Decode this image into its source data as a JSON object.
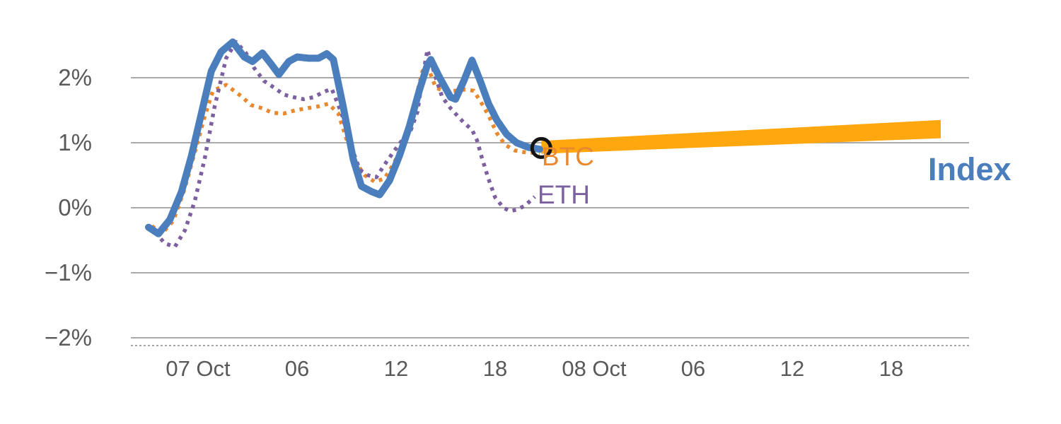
{
  "chart_data": {
    "type": "line",
    "title": "",
    "xlabel": "",
    "ylabel": "",
    "ylim": [
      -2,
      2
    ],
    "x_range_hours": [
      0,
      48
    ],
    "grid": true,
    "legend_position": "end-of-line-labels",
    "colors": {
      "grid": "#9e9e9e",
      "axis_text": "#595959",
      "dashed_axis": "#8a8a8a",
      "background": "#ffffff"
    },
    "y_ticks": [
      {
        "value": 2,
        "label": "2%"
      },
      {
        "value": 1,
        "label": "1%"
      },
      {
        "value": 0,
        "label": "0%"
      },
      {
        "value": -1,
        "label": "−1%"
      },
      {
        "value": -2,
        "label": "−2%"
      }
    ],
    "x_ticks": [
      {
        "h": 3,
        "label": "07 Oct"
      },
      {
        "h": 9,
        "label": "06"
      },
      {
        "h": 15,
        "label": "12"
      },
      {
        "h": 21,
        "label": "18"
      },
      {
        "h": 27,
        "label": "08 Oct"
      },
      {
        "h": 33,
        "label": "06"
      },
      {
        "h": 39,
        "label": "12"
      },
      {
        "h": 45,
        "label": "18"
      }
    ],
    "series": [
      {
        "name": "BTC",
        "color": "#e8882f",
        "style": "dotted",
        "width": 5.5,
        "points": [
          [
            0.2,
            -0.28
          ],
          [
            0.8,
            -0.4
          ],
          [
            1.5,
            -0.2
          ],
          [
            2.2,
            0.3
          ],
          [
            2.8,
            0.85
          ],
          [
            3.4,
            1.4
          ],
          [
            3.9,
            1.8
          ],
          [
            4.7,
            1.89
          ],
          [
            5.6,
            1.72
          ],
          [
            6.2,
            1.58
          ],
          [
            6.9,
            1.53
          ],
          [
            7.5,
            1.46
          ],
          [
            8.2,
            1.45
          ],
          [
            8.9,
            1.5
          ],
          [
            9.6,
            1.53
          ],
          [
            10.3,
            1.56
          ],
          [
            10.9,
            1.6
          ],
          [
            11.5,
            1.45
          ],
          [
            12,
            1.05
          ],
          [
            12.6,
            0.68
          ],
          [
            13.1,
            0.5
          ],
          [
            13.7,
            0.4
          ],
          [
            14.3,
            0.45
          ],
          [
            14.9,
            0.7
          ],
          [
            15.5,
            1.05
          ],
          [
            16.1,
            1.6
          ],
          [
            16.6,
            2.1
          ],
          [
            16.9,
            2.18
          ],
          [
            17.4,
            1.85
          ],
          [
            18,
            1.78
          ],
          [
            18.6,
            1.8
          ],
          [
            19.2,
            1.82
          ],
          [
            19.7,
            1.8
          ],
          [
            20.2,
            1.6
          ],
          [
            20.6,
            1.42
          ],
          [
            21.1,
            1.15
          ],
          [
            21.6,
            0.97
          ],
          [
            22.2,
            0.88
          ],
          [
            22.9,
            0.85
          ],
          [
            23.7,
            0.84
          ]
        ]
      },
      {
        "name": "ETH",
        "color": "#7d60a0",
        "style": "dotted",
        "width": 5.5,
        "points": [
          [
            0.4,
            -0.38
          ],
          [
            1,
            -0.55
          ],
          [
            1.6,
            -0.6
          ],
          [
            2.2,
            -0.35
          ],
          [
            2.8,
            0.1
          ],
          [
            3.4,
            0.75
          ],
          [
            4,
            1.55
          ],
          [
            4.7,
            2.3
          ],
          [
            5.3,
            2.55
          ],
          [
            5.9,
            2.38
          ],
          [
            6.4,
            2.15
          ],
          [
            7,
            1.95
          ],
          [
            7.6,
            1.85
          ],
          [
            8.2,
            1.74
          ],
          [
            8.8,
            1.7
          ],
          [
            9.4,
            1.67
          ],
          [
            10,
            1.7
          ],
          [
            10.6,
            1.78
          ],
          [
            11.1,
            1.83
          ],
          [
            11.7,
            1.45
          ],
          [
            12.2,
            1
          ],
          [
            12.8,
            0.58
          ],
          [
            13.3,
            0.5
          ],
          [
            13.8,
            0.47
          ],
          [
            14.4,
            0.7
          ],
          [
            14.9,
            0.88
          ],
          [
            15.4,
            1.05
          ],
          [
            15.9,
            1.2
          ],
          [
            16.3,
            1.48
          ],
          [
            16.6,
            2
          ],
          [
            16.9,
            2.43
          ],
          [
            17.4,
            2
          ],
          [
            17.8,
            1.7
          ],
          [
            18.3,
            1.53
          ],
          [
            18.7,
            1.42
          ],
          [
            19.1,
            1.31
          ],
          [
            19.6,
            1.2
          ],
          [
            19.9,
            1.04
          ],
          [
            20.2,
            0.77
          ],
          [
            20.6,
            0.44
          ],
          [
            21,
            0.16
          ],
          [
            21.5,
            0
          ],
          [
            21.9,
            -0.05
          ],
          [
            22.3,
            -0.03
          ],
          [
            22.8,
            0.03
          ],
          [
            23.4,
            0.17
          ]
        ]
      },
      {
        "name": "Index",
        "color": "#4a7ebc",
        "style": "solid",
        "width": 10,
        "points": [
          [
            0,
            -0.3
          ],
          [
            0.6,
            -0.4
          ],
          [
            1.3,
            -0.18
          ],
          [
            2,
            0.25
          ],
          [
            2.6,
            0.8
          ],
          [
            3.2,
            1.45
          ],
          [
            3.8,
            2.1
          ],
          [
            4.4,
            2.4
          ],
          [
            5.1,
            2.55
          ],
          [
            5.8,
            2.32
          ],
          [
            6.3,
            2.25
          ],
          [
            6.9,
            2.38
          ],
          [
            7.4,
            2.22
          ],
          [
            7.9,
            2.05
          ],
          [
            8.5,
            2.25
          ],
          [
            9,
            2.32
          ],
          [
            9.7,
            2.3
          ],
          [
            10.3,
            2.3
          ],
          [
            10.8,
            2.37
          ],
          [
            11.2,
            2.28
          ],
          [
            11.8,
            1.55
          ],
          [
            12.4,
            0.75
          ],
          [
            12.9,
            0.33
          ],
          [
            13.5,
            0.25
          ],
          [
            14,
            0.2
          ],
          [
            14.6,
            0.42
          ],
          [
            15.2,
            0.8
          ],
          [
            15.8,
            1.25
          ],
          [
            16.4,
            1.8
          ],
          [
            16.9,
            2.2
          ],
          [
            17.1,
            2.28
          ],
          [
            17.6,
            2.02
          ],
          [
            18.3,
            1.7
          ],
          [
            18.6,
            1.67
          ],
          [
            19.1,
            1.95
          ],
          [
            19.6,
            2.27
          ],
          [
            20.1,
            1.95
          ],
          [
            20.6,
            1.6
          ],
          [
            21.1,
            1.35
          ],
          [
            21.7,
            1.13
          ],
          [
            22.3,
            1
          ],
          [
            23,
            0.93
          ],
          [
            23.7,
            0.9
          ]
        ]
      }
    ],
    "projection_band": {
      "name": "Index projection",
      "color": "#ffa70f",
      "start": {
        "h": 23.8,
        "value": 0.93,
        "half_width": 0.1
      },
      "end": {
        "h": 48.0,
        "value": 1.21,
        "half_width": 0.14
      }
    },
    "marker": {
      "shape": "open-circle",
      "h": 23.8,
      "value": 0.92,
      "radius": 13,
      "stroke_width": 5,
      "color": "#141414"
    },
    "series_labels": {
      "btc": "BTC",
      "eth": "ETH",
      "index": "Index"
    }
  }
}
